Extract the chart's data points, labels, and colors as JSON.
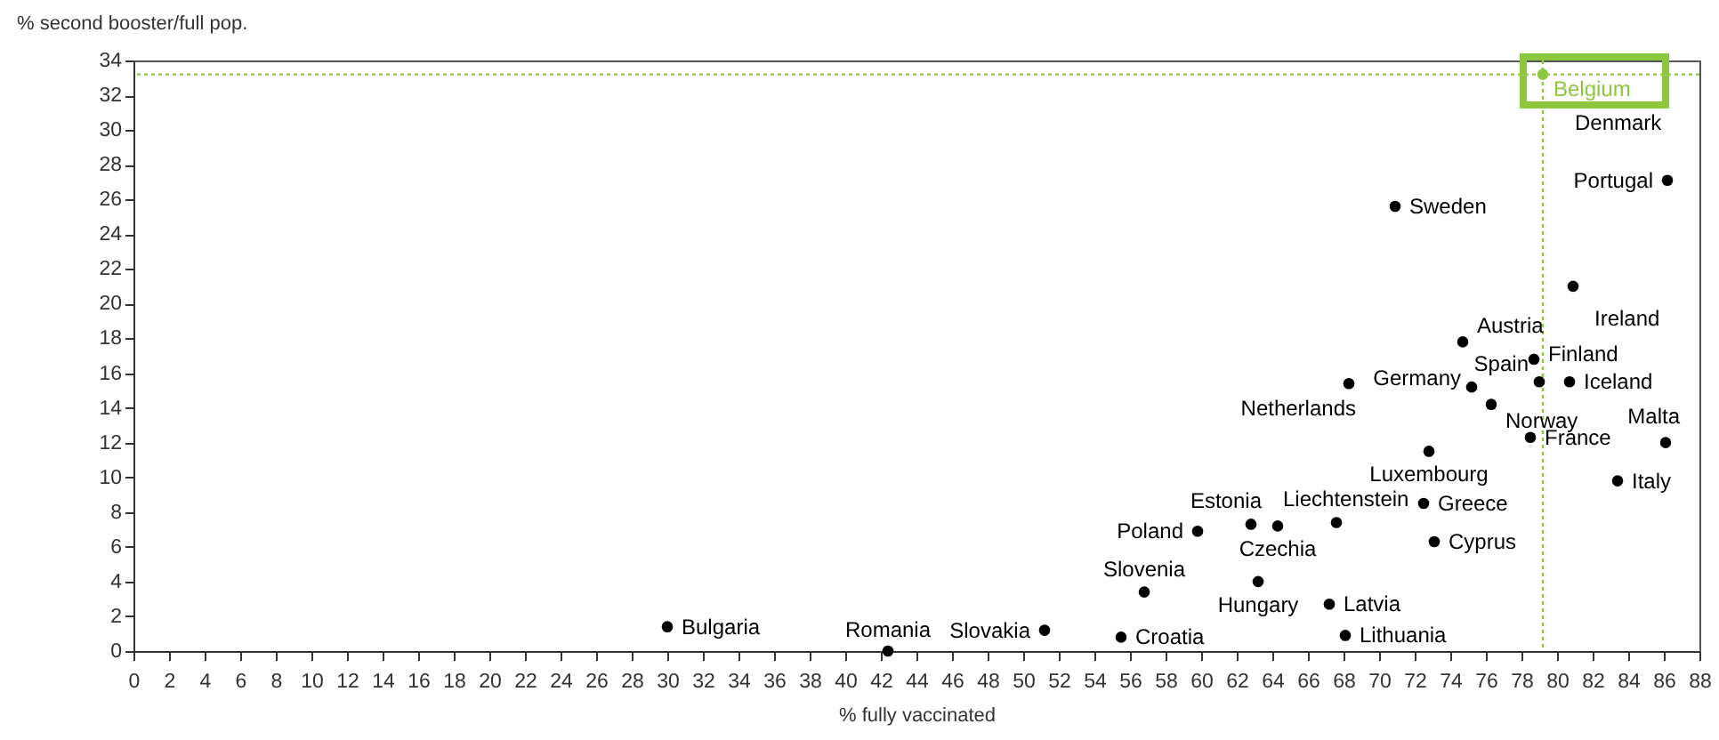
{
  "chart_data": {
    "type": "scatter",
    "ylabel": "% second booster/full pop.",
    "xlabel": "% fully vaccinated",
    "xlim": [
      0,
      88
    ],
    "ylim": [
      0,
      34
    ],
    "xticks": [
      0,
      2,
      4,
      6,
      8,
      10,
      12,
      14,
      16,
      18,
      20,
      22,
      24,
      26,
      28,
      30,
      32,
      34,
      36,
      38,
      40,
      42,
      44,
      46,
      48,
      50,
      52,
      54,
      56,
      58,
      60,
      62,
      64,
      66,
      68,
      70,
      72,
      74,
      76,
      78,
      80,
      82,
      84,
      86,
      88
    ],
    "yticks": [
      0,
      2,
      4,
      6,
      8,
      10,
      12,
      14,
      16,
      18,
      20,
      22,
      24,
      26,
      28,
      30,
      32,
      34
    ],
    "marker": "circle",
    "series": [
      {
        "name": "Belgium",
        "color": "#8dc63f",
        "x": [
          79.2
        ],
        "values": [
          33.2
        ]
      },
      {
        "name": "Portugal",
        "color": "#000000",
        "x": [
          86.2
        ],
        "values": [
          27.1
        ]
      },
      {
        "name": "Sweden",
        "color": "#000000",
        "x": [
          70.9
        ],
        "values": [
          25.6
        ]
      },
      {
        "name": "Ireland",
        "color": "#000000",
        "x": [
          80.9
        ],
        "values": [
          21.0
        ]
      },
      {
        "name": "Austria",
        "color": "#000000",
        "x": [
          74.7
        ],
        "values": [
          17.8
        ]
      },
      {
        "name": "Finland",
        "color": "#000000",
        "x": [
          78.7
        ],
        "values": [
          16.8
        ]
      },
      {
        "name": "Spain",
        "color": "#000000",
        "x": [
          79.0
        ],
        "values": [
          15.5
        ]
      },
      {
        "name": "Iceland",
        "color": "#000000",
        "x": [
          80.7
        ],
        "values": [
          15.5
        ]
      },
      {
        "name": "Germany",
        "color": "#000000",
        "x": [
          75.2
        ],
        "values": [
          15.2
        ]
      },
      {
        "name": "Norway",
        "color": "#000000",
        "x": [
          76.3
        ],
        "values": [
          14.2
        ]
      },
      {
        "name": "Netherlands",
        "color": "#000000",
        "x": [
          68.3
        ],
        "values": [
          15.4
        ]
      },
      {
        "name": "France",
        "color": "#000000",
        "x": [
          78.5
        ],
        "values": [
          12.3
        ]
      },
      {
        "name": "Malta",
        "color": "#000000",
        "x": [
          86.1
        ],
        "values": [
          12.0
        ]
      },
      {
        "name": "Luxembourg",
        "color": "#000000",
        "x": [
          72.8
        ],
        "values": [
          11.5
        ]
      },
      {
        "name": "Italy",
        "color": "#000000",
        "x": [
          83.4
        ],
        "values": [
          9.8
        ]
      },
      {
        "name": "Greece",
        "color": "#000000",
        "x": [
          72.5
        ],
        "values": [
          8.5
        ]
      },
      {
        "name": "Cyprus",
        "color": "#000000",
        "x": [
          73.1
        ],
        "values": [
          6.3
        ]
      },
      {
        "name": "Liechtenstein",
        "color": "#000000",
        "x": [
          67.6
        ],
        "values": [
          7.4
        ]
      },
      {
        "name": "Estonia",
        "color": "#000000",
        "x": [
          62.8
        ],
        "values": [
          7.3
        ]
      },
      {
        "name": "Czechia",
        "color": "#000000",
        "x": [
          64.3
        ],
        "values": [
          7.2
        ]
      },
      {
        "name": "Poland",
        "color": "#000000",
        "x": [
          59.8
        ],
        "values": [
          6.9
        ]
      },
      {
        "name": "Slovenia",
        "color": "#000000",
        "x": [
          56.8
        ],
        "values": [
          3.4
        ]
      },
      {
        "name": "Hungary",
        "color": "#000000",
        "x": [
          63.2
        ],
        "values": [
          4.0
        ]
      },
      {
        "name": "Latvia",
        "color": "#000000",
        "x": [
          67.2
        ],
        "values": [
          2.7
        ]
      },
      {
        "name": "Lithuania",
        "color": "#000000",
        "x": [
          68.1
        ],
        "values": [
          0.9
        ]
      },
      {
        "name": "Croatia",
        "color": "#000000",
        "x": [
          55.5
        ],
        "values": [
          0.8
        ]
      },
      {
        "name": "Slovakia",
        "color": "#000000",
        "x": [
          51.2
        ],
        "values": [
          1.2
        ]
      },
      {
        "name": "Romania",
        "color": "#000000",
        "x": [
          42.4
        ],
        "values": [
          0
        ]
      },
      {
        "name": "Bulgaria",
        "color": "#000000",
        "x": [
          30.0
        ],
        "values": [
          1.4
        ]
      }
    ],
    "annotations": [
      "Denmark"
    ],
    "ref_lines": [
      {
        "axis": "x",
        "value": 79.2,
        "color": "#8dc63f",
        "line_style": "dotted"
      },
      {
        "axis": "y",
        "value": 33.2,
        "color": "#8dc63f",
        "line_style": "dotted"
      }
    ]
  }
}
